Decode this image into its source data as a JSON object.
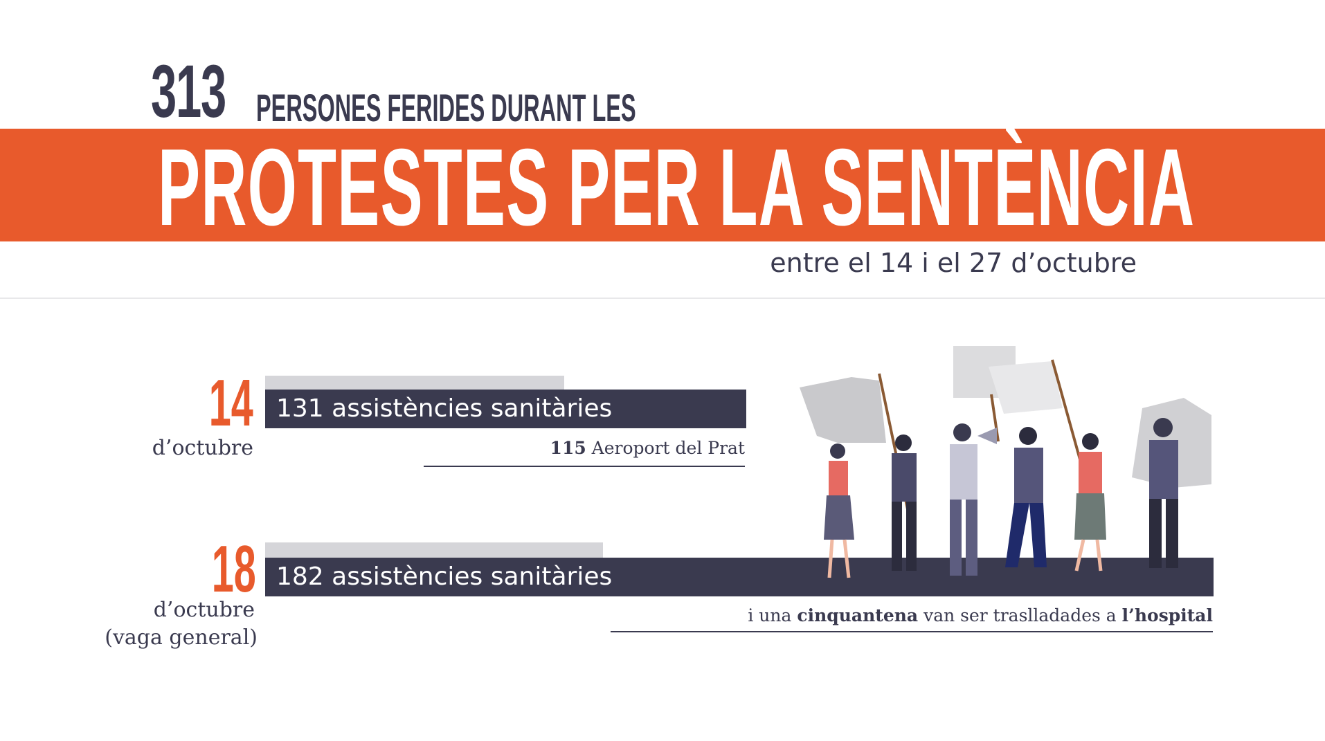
{
  "header": {
    "number": "313",
    "top_line": "PERSONES FERIDES DURANT LES",
    "banner": "PROTESTES PER LA SENTÈNCIA",
    "subtitle": "entre el 14 i el 27 d’octubre"
  },
  "colors": {
    "accent": "#e85a2c",
    "dark": "#3a3a4f",
    "light_bar": "#d5d5d9"
  },
  "rows": [
    {
      "day": "14",
      "month": "d’octubre",
      "extra": "",
      "bar_label": "131 assistències sanitàries",
      "note_bold": "115",
      "note_text": " Aeroport del Prat"
    },
    {
      "day": "18",
      "month": "d’octubre",
      "extra": "(vaga general)",
      "bar_label": "182 assistències sanitàries",
      "note_pre": "i una ",
      "note_bold1": "cinquantena",
      "note_mid": " van ser traslladades a ",
      "note_bold2": "l’hospital"
    }
  ],
  "illustration": {
    "icon": "protesters-illustration"
  }
}
